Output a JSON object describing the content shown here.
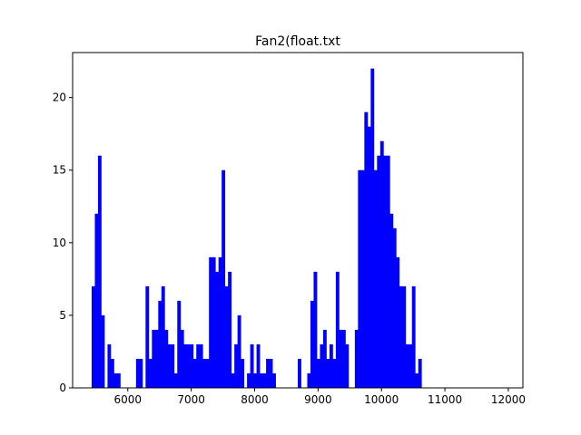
{
  "chart_data": {
    "type": "bar",
    "title": "Fan2(float.txt",
    "xlabel": "",
    "ylabel": "",
    "xlim": [
      5130,
      12230
    ],
    "ylim": [
      0,
      23.1
    ],
    "xticks": [
      6000,
      7000,
      8000,
      9000,
      10000,
      11000,
      12000
    ],
    "yticks": [
      0,
      5,
      10,
      15,
      20
    ],
    "bin_start": 5430,
    "bin_width": 50,
    "bar_color": "#0000ff",
    "grid": false,
    "values": [
      7,
      12,
      16,
      5,
      0,
      3,
      2,
      1,
      1,
      0,
      0,
      0,
      0,
      0,
      2,
      2,
      0,
      7,
      2,
      4,
      4,
      6,
      7,
      4,
      3,
      3,
      1,
      6,
      4,
      3,
      3,
      3,
      2,
      3,
      3,
      2,
      2,
      9,
      9,
      8,
      9,
      15,
      7,
      8,
      1,
      3,
      5,
      2,
      0,
      1,
      3,
      1,
      3,
      1,
      1,
      2,
      2,
      1,
      0,
      0,
      0,
      0,
      0,
      0,
      0,
      2,
      0,
      0,
      1,
      6,
      8,
      2,
      3,
      4,
      2,
      3,
      2,
      8,
      4,
      4,
      3,
      0,
      0,
      4,
      15,
      15,
      19,
      18,
      22,
      15,
      16,
      17,
      16,
      16,
      12,
      11,
      9,
      7,
      7,
      3,
      3,
      7,
      1,
      2
    ]
  }
}
